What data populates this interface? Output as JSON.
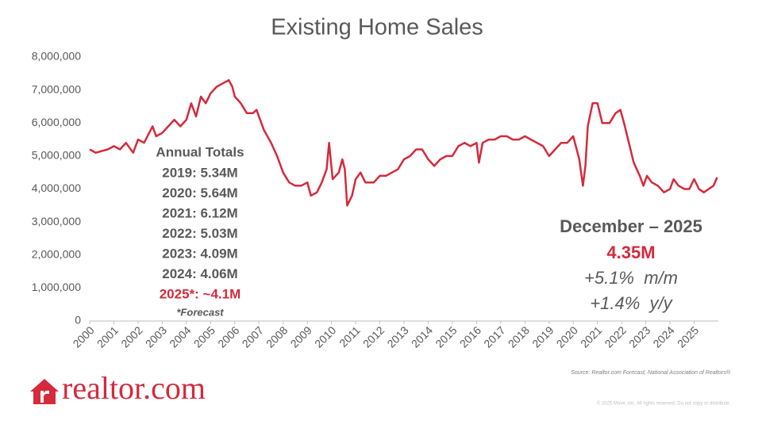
{
  "chart_data": {
    "type": "line",
    "title": "Existing Home Sales",
    "color": "#d42a3c",
    "x": [
      2000.0,
      2000.25,
      2000.5,
      2000.75,
      2001.0,
      2001.25,
      2001.5,
      2001.8,
      2002.0,
      2002.25,
      2002.6,
      2002.75,
      2003.0,
      2003.25,
      2003.5,
      2003.75,
      2004.0,
      2004.2,
      2004.4,
      2004.6,
      2004.8,
      2005.0,
      2005.25,
      2005.5,
      2005.75,
      2005.9,
      2006.0,
      2006.25,
      2006.5,
      2006.75,
      2006.9,
      2007.0,
      2007.2,
      2007.5,
      2007.75,
      2008.0,
      2008.25,
      2008.5,
      2008.75,
      2009.0,
      2009.15,
      2009.4,
      2009.6,
      2009.8,
      2009.9,
      2010.05,
      2010.3,
      2010.45,
      2010.55,
      2010.65,
      2010.85,
      2011.0,
      2011.2,
      2011.4,
      2011.75,
      2012.0,
      2012.25,
      2012.5,
      2012.75,
      2013.0,
      2013.25,
      2013.5,
      2013.75,
      2014.0,
      2014.25,
      2014.5,
      2014.75,
      2015.0,
      2015.25,
      2015.5,
      2015.75,
      2016.0,
      2016.1,
      2016.25,
      2016.5,
      2016.75,
      2017.0,
      2017.25,
      2017.5,
      2017.75,
      2018.0,
      2018.25,
      2018.5,
      2018.75,
      2019.0,
      2019.25,
      2019.5,
      2019.75,
      2020.0,
      2020.25,
      2020.4,
      2020.5,
      2020.6,
      2020.8,
      2021.0,
      2021.2,
      2021.5,
      2021.75,
      2021.95,
      2022.1,
      2022.3,
      2022.5,
      2022.75,
      2022.9,
      2023.05,
      2023.25,
      2023.5,
      2023.75,
      2024.0,
      2024.15,
      2024.35,
      2024.6,
      2024.8,
      2025.0,
      2025.2,
      2025.4,
      2025.6,
      2025.8,
      2025.95
    ],
    "values": [
      5200000,
      5100000,
      5150000,
      5200000,
      5300000,
      5200000,
      5400000,
      5100000,
      5500000,
      5400000,
      5900000,
      5600000,
      5700000,
      5900000,
      6100000,
      5900000,
      6100000,
      6600000,
      6200000,
      6800000,
      6600000,
      6900000,
      7100000,
      7200000,
      7300000,
      7100000,
      6800000,
      6600000,
      6300000,
      6300000,
      6400000,
      6200000,
      5800000,
      5400000,
      5000000,
      4500000,
      4200000,
      4100000,
      4100000,
      4200000,
      3800000,
      3900000,
      4200000,
      4600000,
      5400000,
      4300000,
      4500000,
      4900000,
      4600000,
      3500000,
      3800000,
      4300000,
      4500000,
      4200000,
      4200000,
      4400000,
      4400000,
      4500000,
      4600000,
      4900000,
      5000000,
      5200000,
      5200000,
      4900000,
      4700000,
      4900000,
      5000000,
      5000000,
      5300000,
      5400000,
      5300000,
      5400000,
      4800000,
      5400000,
      5500000,
      5500000,
      5600000,
      5600000,
      5500000,
      5500000,
      5600000,
      5500000,
      5400000,
      5300000,
      5000000,
      5200000,
      5400000,
      5400000,
      5600000,
      4900000,
      4100000,
      4700000,
      5900000,
      6600000,
      6600000,
      6000000,
      6000000,
      6300000,
      6400000,
      6000000,
      5400000,
      4800000,
      4400000,
      4100000,
      4400000,
      4200000,
      4100000,
      3900000,
      4000000,
      4300000,
      4100000,
      4000000,
      4000000,
      4300000,
      4000000,
      3900000,
      4000000,
      4100000,
      4350000
    ],
    "xlim": [
      2000,
      2026
    ],
    "xticks": [
      2000,
      2001,
      2002,
      2003,
      2004,
      2005,
      2006,
      2007,
      2008,
      2009,
      2010,
      2011,
      2012,
      2013,
      2014,
      2015,
      2016,
      2017,
      2018,
      2019,
      2020,
      2021,
      2022,
      2023,
      2024,
      2025
    ],
    "ylim": [
      0,
      8000000
    ],
    "yticks": [
      0,
      {
        "value": 1000000,
        "label": "1,000,000"
      },
      {
        "value": 2000000,
        "label": "2,000,000"
      },
      {
        "value": 3000000,
        "label": "3,000,000"
      },
      {
        "value": 4000000,
        "label": "4,000,000"
      },
      {
        "value": 5000000,
        "label": "5,000,000"
      },
      {
        "value": 6000000,
        "label": "6,000,000"
      },
      {
        "value": 7000000,
        "label": "7,000,000"
      },
      {
        "value": 8000000,
        "label": "8,000,000"
      }
    ],
    "annual_totals": {
      "title": "Annual Totals",
      "lines": [
        "2019: 5.34M",
        "2020: 5.64M",
        "2021: 6.12M",
        "2022: 5.03M",
        "2023: 4.09M",
        "2024: 4.06M"
      ],
      "forecast_line": "2025*: ~4.1M",
      "note": "*Forecast"
    },
    "highlight": {
      "title": "December – 2025",
      "value": "4.35M",
      "mom": "+5.1%  m/m",
      "yoy": "+1.4%  y/y"
    },
    "source": "Source: Realtor.com Forecast, National Association of Realtors®",
    "copyright": "© 2025 Move, Inc. All rights reserved. Do not copy or distribute.",
    "logo": "realtor.com"
  }
}
